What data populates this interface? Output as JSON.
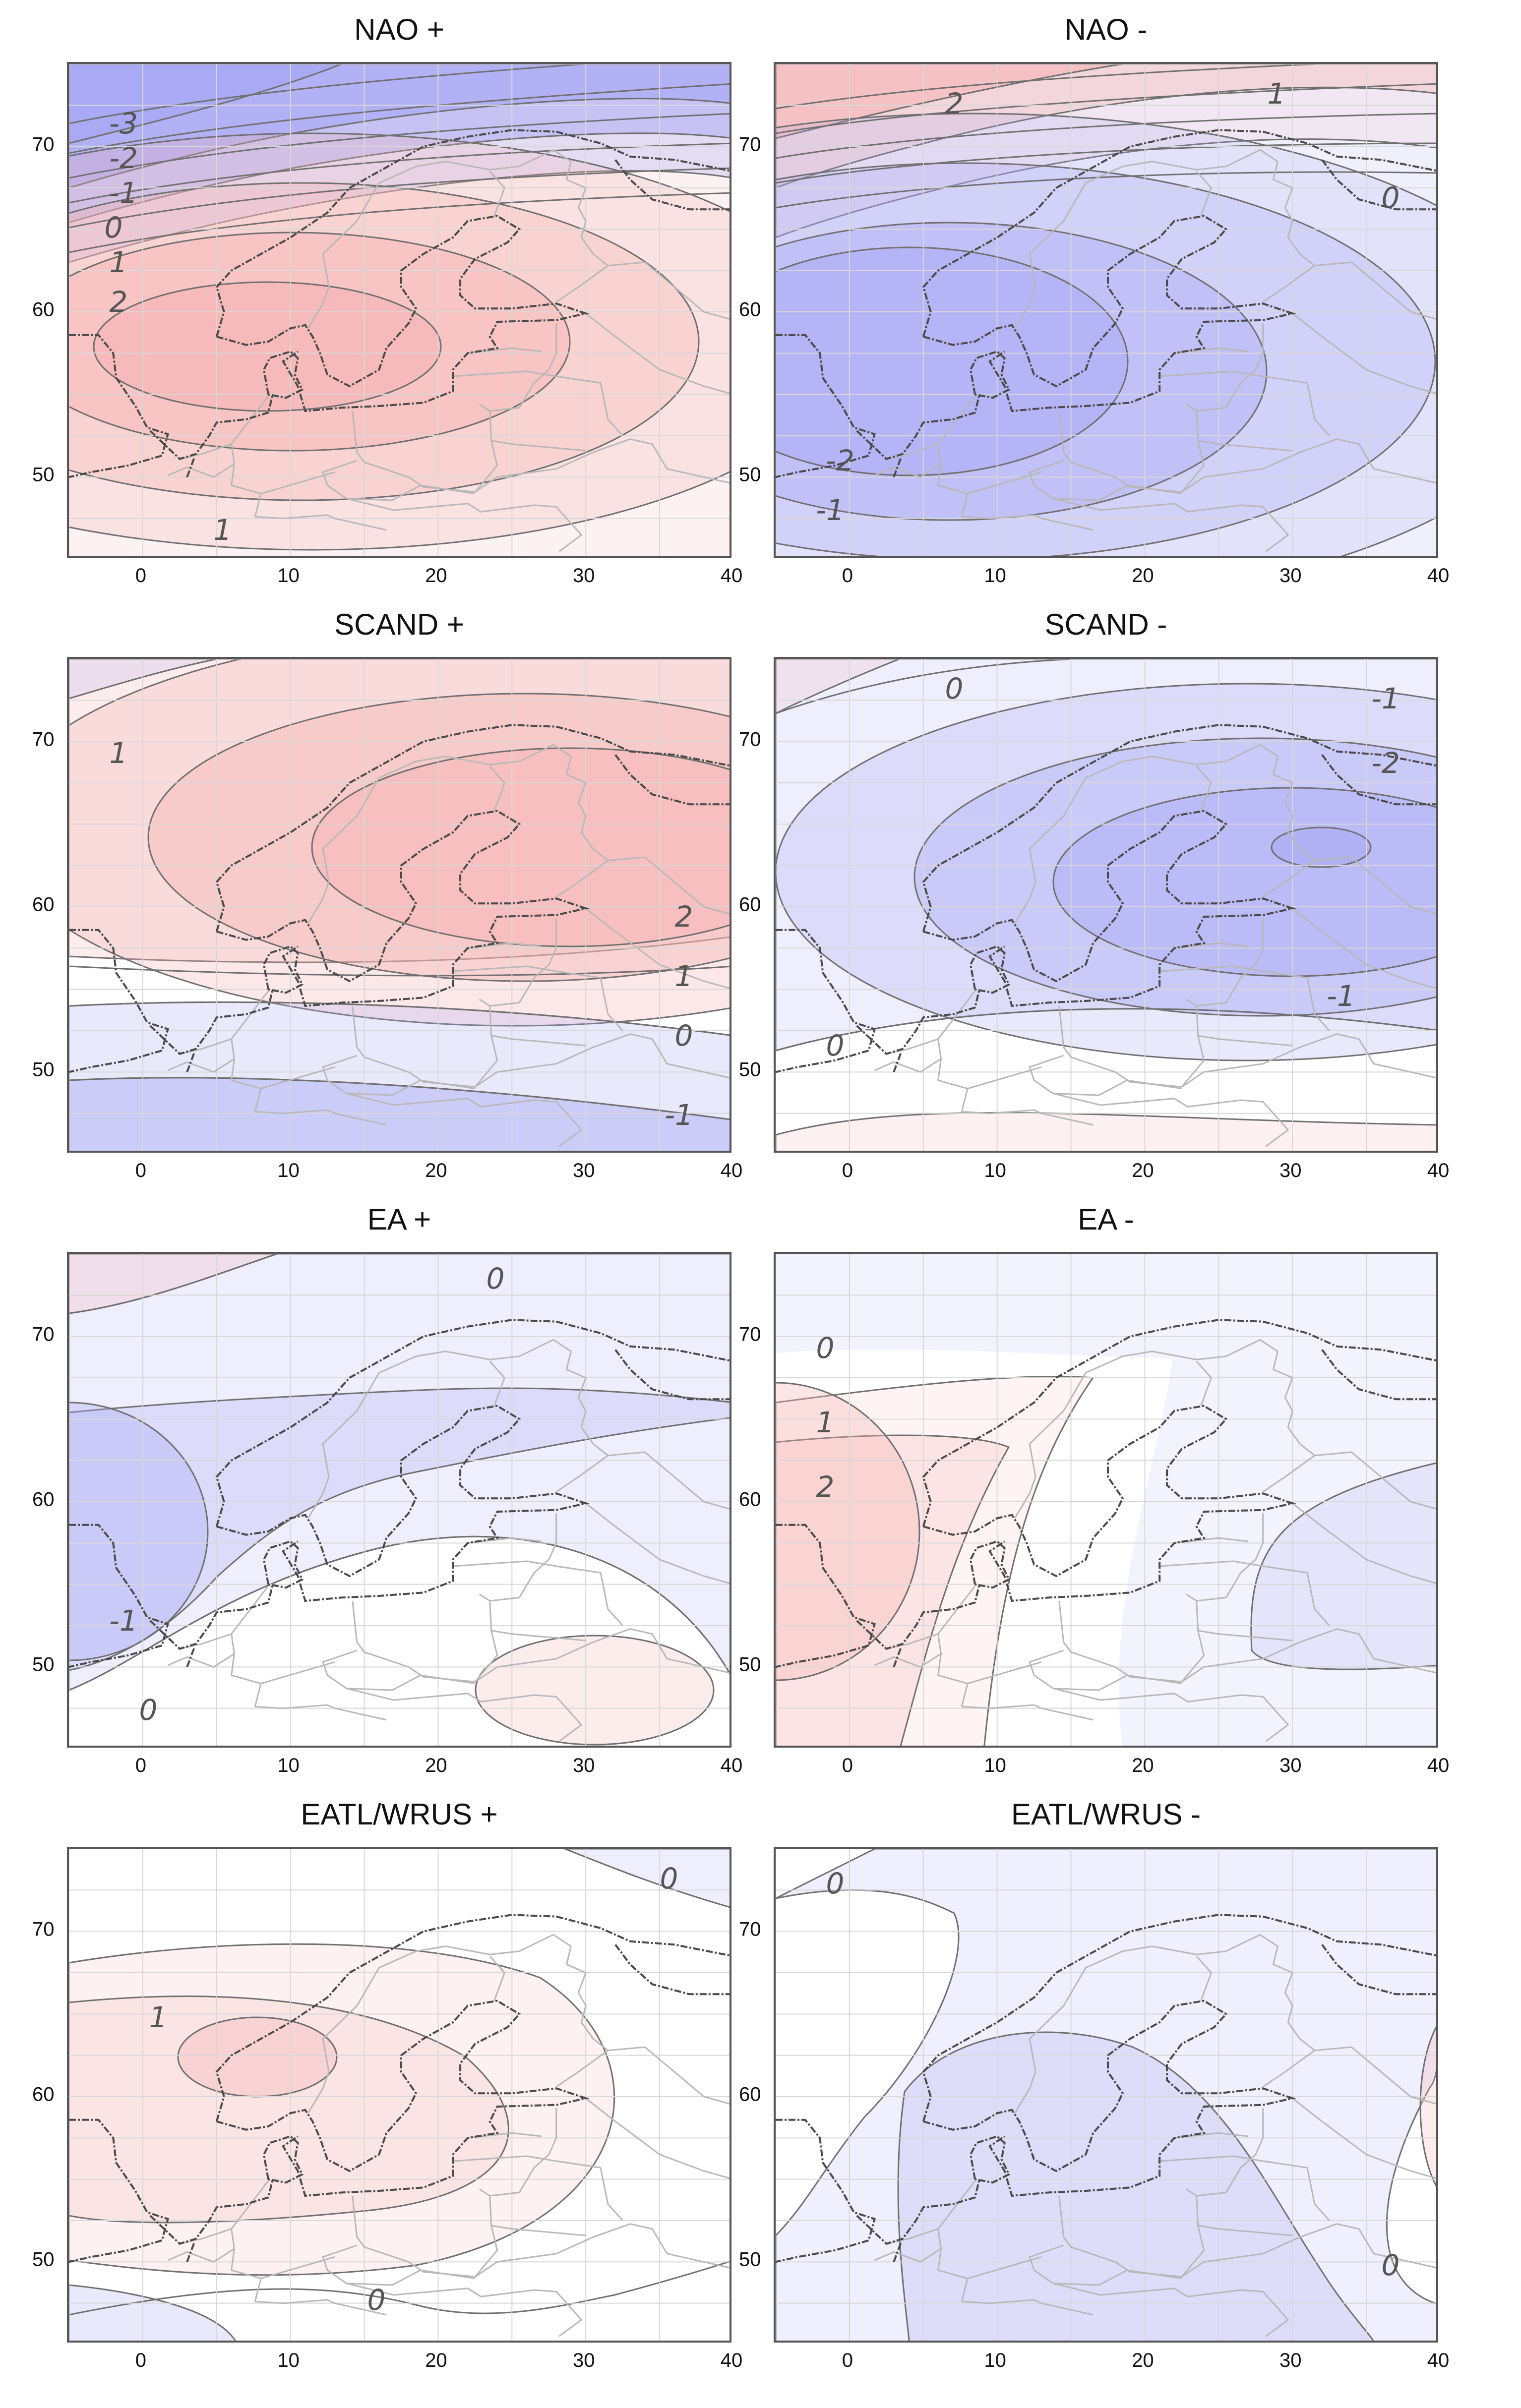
{
  "figure": {
    "x_ticks": [
      "0",
      "10",
      "20",
      "30",
      "40"
    ],
    "y_ticks": [
      "70",
      "60",
      "50"
    ],
    "lon_range": [
      -5,
      40
    ],
    "lat_range": [
      45,
      75
    ],
    "positive_color": "#f6b4b4",
    "negative_color": "#a9a9f5",
    "neutral_color": "#ffffff",
    "contour_color": "#707070",
    "coastline_color": "#4a4a4a",
    "border_color": "#b8b8b8",
    "grid_color": "#d8d8d8"
  },
  "panels": [
    {
      "title": "NAO +",
      "labels": [
        "-3",
        "-2",
        "-1",
        "0",
        "1",
        "2",
        "1"
      ]
    },
    {
      "title": "NAO -",
      "labels": [
        "2",
        "1",
        "0",
        "-2",
        "-1"
      ]
    },
    {
      "title": "SCAND +",
      "labels": [
        "1",
        "2",
        "1",
        "0",
        "-1"
      ]
    },
    {
      "title": "SCAND -",
      "labels": [
        "0",
        "-1",
        "-2",
        "-1",
        "0"
      ]
    },
    {
      "title": "EA +",
      "labels": [
        "0",
        "-1",
        "0"
      ]
    },
    {
      "title": "EA -",
      "labels": [
        "0",
        "1",
        "2"
      ]
    },
    {
      "title": "EATL/WRUS +",
      "labels": [
        "0",
        "1",
        "0"
      ]
    },
    {
      "title": "EATL/WRUS -",
      "labels": [
        "0",
        "0"
      ]
    }
  ]
}
